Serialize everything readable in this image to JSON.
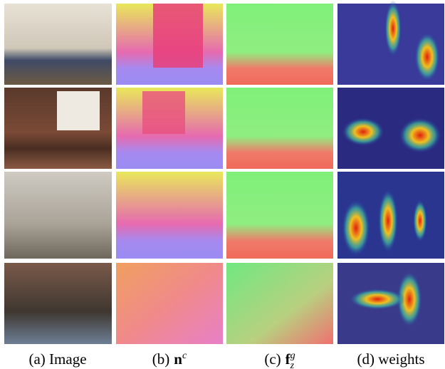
{
  "figure": {
    "captions": [
      {
        "label": "(a) Image"
      },
      {
        "label": "(b)",
        "symbol": "n",
        "sup": "c"
      },
      {
        "label": "(c)",
        "symbol": "f",
        "sup": "g",
        "sub": "z"
      },
      {
        "label": "(d) weights"
      }
    ]
  }
}
